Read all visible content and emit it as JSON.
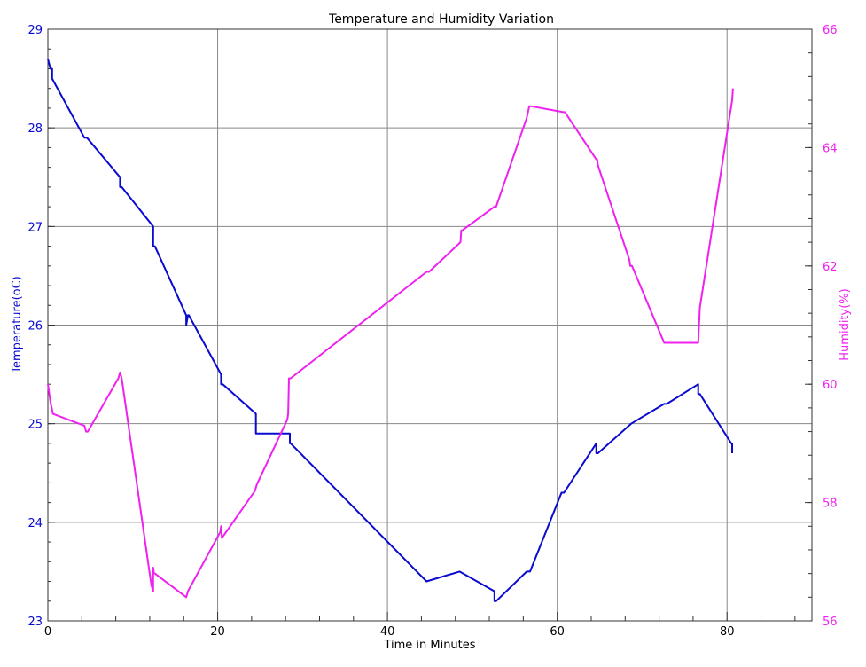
{
  "chart_data": {
    "type": "line",
    "title": "Temperature and Humidity Variation",
    "xlabel": "Time in Minutes",
    "ylabel_left": "Temperature(oC)",
    "ylabel_right": "Humidity(%)",
    "xlim": [
      0,
      90
    ],
    "ylim_left": [
      23,
      29
    ],
    "ylim_right": [
      56,
      66
    ],
    "x_ticks": [
      0,
      20,
      40,
      60,
      80
    ],
    "y_ticks_left": [
      23,
      24,
      25,
      26,
      27,
      28,
      29
    ],
    "y_ticks_right": [
      56,
      58,
      60,
      62,
      64,
      66
    ],
    "grid": true,
    "colors": {
      "temperature": "#0a0ad0",
      "humidity": "#f020f0",
      "grid": "#888888",
      "axis": "#333333"
    },
    "series": [
      {
        "axis": "left",
        "x": [
          0,
          0.3,
          0.5,
          0.5,
          4.3,
          4.6,
          8.5,
          8.5,
          8.7,
          12.4,
          12.4,
          12.6,
          16.3,
          16.3,
          16.5,
          16.6,
          20.4,
          20.4,
          20.6,
          24.5,
          24.5,
          24.7,
          28.3,
          28.5,
          28.5,
          28.6,
          44.6,
          48.5,
          52.6,
          52.6,
          52.8,
          56.4,
          56.8,
          60.5,
          60.8,
          64.6,
          64.6,
          64.8,
          68.7,
          72.6,
          72.9,
          76.6,
          76.6,
          76.8,
          80.5,
          80.6,
          80.6
        ],
        "values": [
          28.7,
          28.6,
          28.6,
          28.5,
          27.9,
          27.9,
          27.5,
          27.4,
          27.4,
          27.0,
          26.8,
          26.8,
          26.1,
          26.0,
          26.1,
          26.1,
          25.5,
          25.4,
          25.4,
          25.1,
          24.9,
          24.9,
          24.9,
          24.9,
          24.8,
          24.8,
          23.4,
          23.5,
          23.3,
          23.2,
          23.2,
          23.5,
          23.5,
          24.3,
          24.3,
          24.8,
          24.7,
          24.7,
          25.0,
          25.2,
          25.2,
          25.4,
          25.3,
          25.3,
          24.8,
          24.8,
          24.7
        ]
      },
      {
        "axis": "right",
        "x": [
          0,
          0.3,
          0.6,
          4.3,
          4.5,
          4.7,
          8.3,
          8.5,
          8.7,
          12.2,
          12.4,
          12.4,
          12.5,
          12.6,
          16.3,
          16.3,
          16.5,
          20.3,
          20.4,
          20.5,
          24.4,
          24.6,
          28.2,
          28.3,
          28.4,
          28.6,
          44.6,
          44.9,
          48.6,
          48.7,
          48.8,
          52.6,
          52.8,
          56.4,
          56.7,
          56.9,
          60.7,
          60.9,
          64.6,
          64.7,
          64.8,
          68.5,
          68.6,
          68.8,
          72.6,
          72.7,
          72.9,
          76.6,
          76.7,
          76.8,
          80.6,
          80.7
        ],
        "values": [
          60.0,
          59.7,
          59.5,
          59.3,
          59.2,
          59.2,
          60.1,
          60.2,
          60.1,
          56.6,
          56.5,
          56.9,
          56.8,
          56.8,
          56.4,
          56.4,
          56.5,
          57.5,
          57.6,
          57.4,
          58.2,
          58.3,
          59.4,
          59.5,
          60.1,
          60.1,
          61.9,
          61.9,
          62.4,
          62.6,
          62.6,
          63.0,
          63.0,
          64.5,
          64.7,
          64.7,
          64.6,
          64.6,
          63.8,
          63.8,
          63.7,
          62.1,
          62.0,
          62.0,
          60.7,
          60.7,
          60.7,
          60.7,
          61.0,
          61.3,
          64.8,
          65.0
        ]
      }
    ]
  }
}
